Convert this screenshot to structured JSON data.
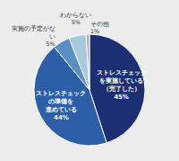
{
  "chart_data": {
    "type": "pie",
    "categories": [
      "ストレスチェック\nを実施している\n（完了した）",
      "ストレスチェック\nの準備を\n進めている",
      "実施の予定がな\nい",
      "わからない",
      "その他"
    ],
    "values": [
      45,
      44,
      5,
      5,
      1
    ],
    "value_labels": [
      "45%",
      "44%",
      "5%",
      "5%",
      "1%"
    ],
    "colors": [
      "#1b2f72",
      "#2d5ea8",
      "#5b8ec4",
      "#a8c8e0",
      "#b0b0b0"
    ],
    "data_labels": true
  }
}
